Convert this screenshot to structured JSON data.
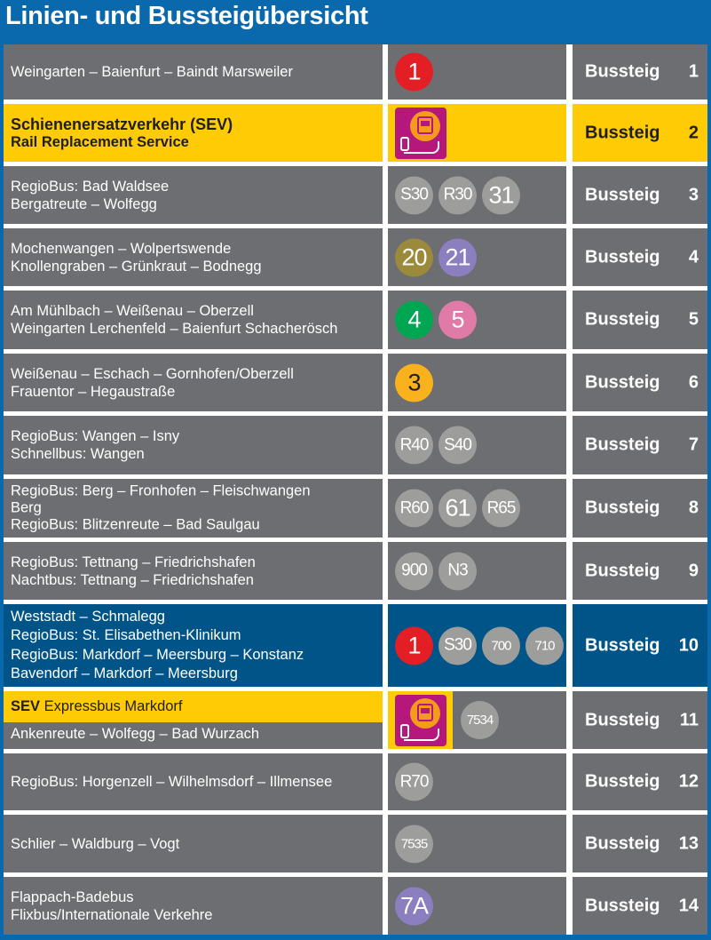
{
  "title": "Linien- und Bussteigübersicht",
  "colors": {
    "gray": "#6d6e71",
    "yellow": "#ffcb05",
    "blue": "#005487",
    "badge_gray": "#9d9d9c",
    "red": "#e31e24",
    "olive": "#9c8a3c",
    "purple": "#8b7fc0",
    "green": "#00a651",
    "pink": "#e07aa6",
    "orange": "#f9b21b",
    "sev": "#b5177d"
  },
  "platform_label": "Bussteig",
  "rows": [
    {
      "style": "gray",
      "lines": [
        "Weingarten – Baienfurt – Baindt Marsweiler"
      ],
      "badges": [
        {
          "text": "1",
          "color": "#e31e24",
          "size": "l"
        }
      ],
      "platform": "1"
    },
    {
      "style": "yellow",
      "lines": [
        "Schienenersatzverkehr (SEV)",
        "Rail Replacement Service"
      ],
      "sev_icon": true,
      "badges": [],
      "platform": "2"
    },
    {
      "style": "gray",
      "lines": [
        "RegioBus: Bad Waldsee",
        "Bergatreute – Wolfegg"
      ],
      "badges": [
        {
          "text": "S30",
          "color": "#9d9d9c",
          "size": "m"
        },
        {
          "text": "R30",
          "color": "#9d9d9c",
          "size": "m"
        },
        {
          "text": "31",
          "color": "#9d9d9c",
          "size": "l"
        }
      ],
      "platform": "3"
    },
    {
      "style": "gray",
      "lines": [
        "Mochenwangen – Wolpertswende",
        "Knollengraben – Grünkraut – Bodnegg"
      ],
      "badges": [
        {
          "text": "20",
          "color": "#9c8a3c",
          "size": "l"
        },
        {
          "text": "21",
          "color": "#8b7fc0",
          "size": "l"
        }
      ],
      "platform": "4"
    },
    {
      "style": "gray",
      "lines": [
        "Am Mühlbach – Weißenau – Oberzell",
        "Weingarten Lerchenfeld – Baienfurt Schacherösch"
      ],
      "badges": [
        {
          "text": "4",
          "color": "#00a651",
          "size": "l"
        },
        {
          "text": "5",
          "color": "#e07aa6",
          "size": "l"
        }
      ],
      "platform": "5"
    },
    {
      "style": "gray",
      "lines": [
        "Weißenau – Eschach – Gornhofen/Oberzell",
        "Frauentor – Hegaustraße"
      ],
      "badges": [
        {
          "text": "3",
          "color": "#f9b21b",
          "size": "l",
          "dark": true
        }
      ],
      "platform": "6"
    },
    {
      "style": "gray",
      "lines": [
        "RegioBus: Wangen – Isny",
        "Schnellbus: Wangen"
      ],
      "badges": [
        {
          "text": "R40",
          "color": "#9d9d9c",
          "size": "m"
        },
        {
          "text": "S40",
          "color": "#9d9d9c",
          "size": "m"
        }
      ],
      "platform": "7"
    },
    {
      "style": "gray",
      "lines": [
        "RegioBus: Berg – Fronhofen – Fleischwangen",
        "Berg",
        "RegioBus: Blitzenreute – Bad Saulgau"
      ],
      "badges": [
        {
          "text": "R60",
          "color": "#9d9d9c",
          "size": "m"
        },
        {
          "text": "61",
          "color": "#9d9d9c",
          "size": "l"
        },
        {
          "text": "R65",
          "color": "#9d9d9c",
          "size": "m"
        }
      ],
      "platform": "8"
    },
    {
      "style": "gray",
      "lines": [
        "RegioBus: Tettnang – Friedrichshafen",
        "Nachtbus: Tettnang – Friedrichshafen"
      ],
      "badges": [
        {
          "text": "900",
          "color": "#9d9d9c",
          "size": "m"
        },
        {
          "text": "N3",
          "color": "#9d9d9c",
          "size": "m"
        }
      ],
      "platform": "9"
    },
    {
      "style": "blue",
      "lines": [
        "Weststadt – Schmalegg",
        "RegioBus: St. Elisabethen-Klinikum",
        "RegioBus: Markdorf – Meersburg – Konstanz",
        "Bavendorf – Markdorf – Meersburg"
      ],
      "badges": [
        {
          "text": "1",
          "color": "#e31e24",
          "size": "l"
        },
        {
          "text": "S30",
          "color": "#9d9d9c",
          "size": "m"
        },
        {
          "text": "700",
          "color": "#9d9d9c",
          "size": "s"
        },
        {
          "text": "710",
          "color": "#9d9d9c",
          "size": "s"
        }
      ],
      "platform": "10"
    },
    {
      "style": "split",
      "split_top_bold": "SEV",
      "split_top_text": "Expressbus Markdorf",
      "lines": [
        "Ankenreute – Wolfegg – Bad Wurzach"
      ],
      "sev_icon": true,
      "badges": [
        {
          "text": "7534",
          "color": "#9d9d9c",
          "size": "s"
        }
      ],
      "platform": "11"
    },
    {
      "style": "gray",
      "lines": [
        "RegioBus: Horgenzell – Wilhelmsdorf – Illmensee"
      ],
      "badges": [
        {
          "text": "R70",
          "color": "#9d9d9c",
          "size": "m"
        }
      ],
      "platform": "12"
    },
    {
      "style": "gray",
      "lines": [
        "Schlier – Waldburg – Vogt"
      ],
      "badges": [
        {
          "text": "7535",
          "color": "#9d9d9c",
          "size": "s"
        }
      ],
      "platform": "13"
    },
    {
      "style": "gray",
      "lines": [
        "Flappach-Badebus",
        "Flixbus/Internationale Verkehre"
      ],
      "badges": [
        {
          "text": "7A",
          "color": "#8b7fc0",
          "size": "l"
        }
      ],
      "platform": "14"
    }
  ]
}
